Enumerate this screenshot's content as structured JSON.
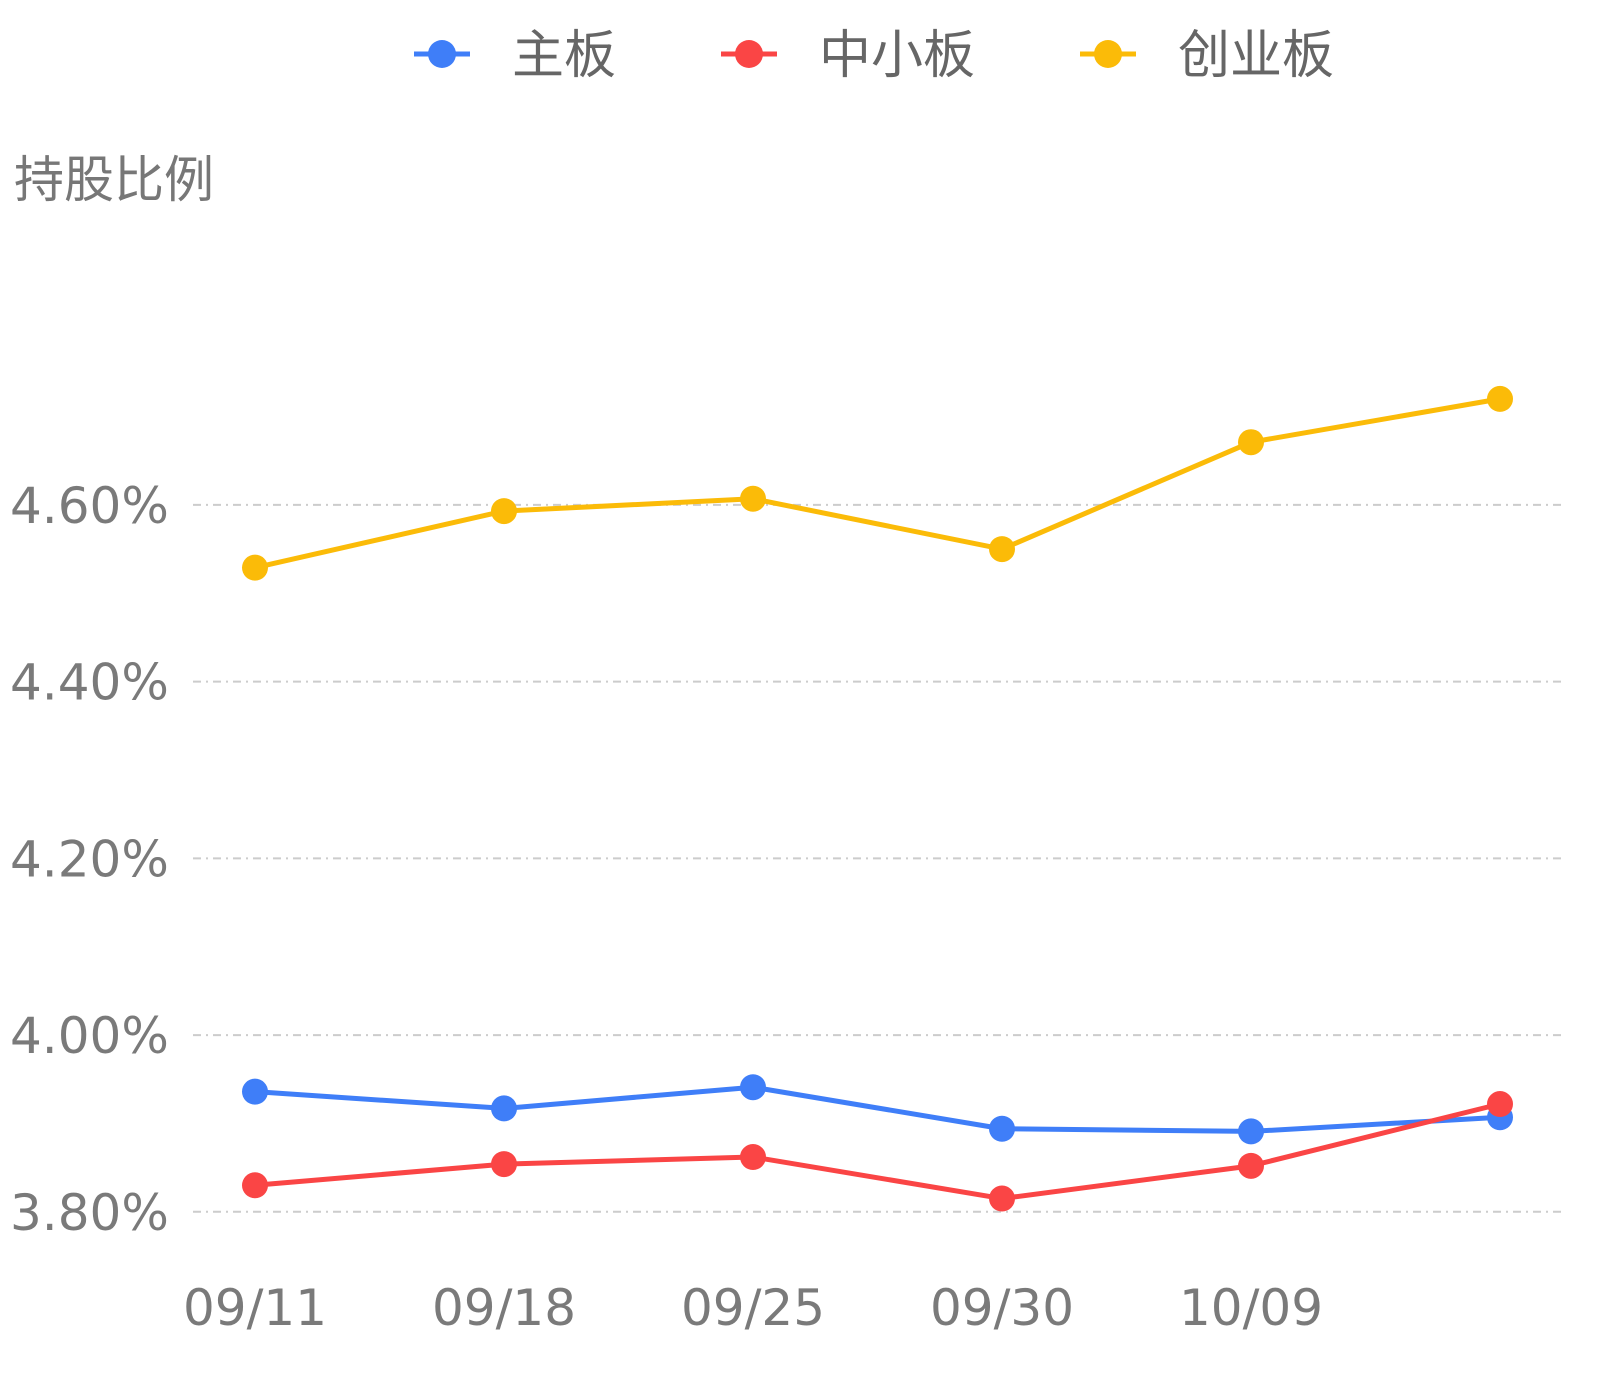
{
  "chart_data": {
    "type": "line",
    "title": "",
    "ylabel": "持股比例",
    "xlabel": "",
    "categories": [
      "09/11",
      "09/18",
      "09/25",
      "09/30",
      "10/09",
      ""
    ],
    "x_tick_labels": [
      "09/11",
      "09/18",
      "09/25",
      "09/30",
      "10/09"
    ],
    "y_ticks": [
      3.8,
      4.0,
      4.2,
      4.4,
      4.6
    ],
    "y_tick_labels": [
      "3.80%",
      "4.00%",
      "4.20%",
      "4.40%",
      "4.60%"
    ],
    "ylim": [
      3.69,
      4.97
    ],
    "grid": "horizontal dashed",
    "legend_position": "top",
    "series": [
      {
        "name": "主板",
        "color": "#3f7ef8",
        "values": [
          3.936,
          3.917,
          3.941,
          3.894,
          3.891,
          3.907
        ]
      },
      {
        "name": "中小板",
        "color": "#fa4545",
        "values": [
          3.83,
          3.854,
          3.862,
          3.815,
          3.852,
          3.922
        ]
      },
      {
        "name": "创业板",
        "color": "#fbbb08",
        "values": [
          4.529,
          4.593,
          4.607,
          4.55,
          4.671,
          4.72
        ]
      }
    ]
  }
}
